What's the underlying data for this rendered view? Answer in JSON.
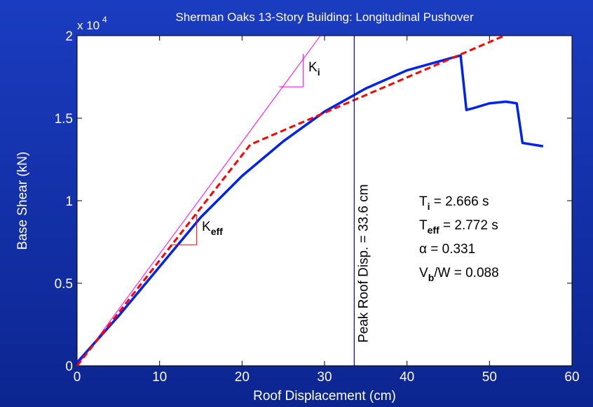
{
  "chart_data": {
    "type": "line",
    "title": "Sherman Oaks 13-Story Building: Longitudinal Pushover",
    "xlabel": "Roof Displacement (cm)",
    "ylabel": "Base Shear (kN)",
    "y_multiplier": {
      "base": "x 10",
      "exponent": "4"
    },
    "xlim": [
      0,
      60
    ],
    "ylim": [
      0,
      2
    ],
    "xticks": [
      0,
      10,
      20,
      30,
      40,
      50,
      60
    ],
    "yticks": [
      0,
      0.5,
      1,
      1.5,
      2
    ],
    "series": [
      {
        "color": "#ff00ff",
        "style": "solid",
        "width": 1,
        "x": [
          0,
          29.5
        ],
        "values": [
          0,
          2
        ]
      },
      {
        "color": "#0022ee",
        "style": "solid",
        "width": 3.5,
        "x": [
          0,
          5,
          10,
          15,
          20,
          25,
          30,
          35,
          40,
          45,
          46.5,
          47.2,
          48,
          50,
          52,
          53.3,
          54,
          56.5
        ],
        "values": [
          0.02,
          0.3,
          0.6,
          0.9,
          1.15,
          1.36,
          1.54,
          1.68,
          1.79,
          1.86,
          1.88,
          1.55,
          1.56,
          1.59,
          1.6,
          1.59,
          1.35,
          1.33
        ]
      },
      {
        "color": "#ff0000",
        "style": "dashed",
        "width": 3,
        "x": [
          0,
          21,
          51.8
        ],
        "values": [
          0,
          1.34,
          2
        ]
      },
      {
        "color": "#ff00ff",
        "style": "solid",
        "width": 1,
        "x": [
          24.5,
          27.4,
          27.4
        ],
        "values": [
          1.69,
          1.69,
          1.89
        ]
      },
      {
        "color": "#ff0000",
        "style": "solid",
        "width": 1,
        "x": [
          11.3,
          14.5,
          14.5
        ],
        "values": [
          0.733,
          0.733,
          0.915
        ]
      }
    ],
    "vline": {
      "x": 33.6,
      "color": "#0000cc",
      "label": "Peak Roof Disp. = 33.6 cm"
    },
    "stiffness_labels": [
      {
        "text": "K",
        "sub": "i"
      },
      {
        "text": "K",
        "sub": "eff"
      }
    ],
    "annotations": [
      {
        "text": "T",
        "sub": "i",
        "after": " = 2.666 s"
      },
      {
        "text": "T",
        "sub": "eff",
        "after": " = 2.772 s"
      },
      {
        "text": "α = 0.331"
      },
      {
        "text": "V",
        "sub": "b",
        "after": "/W = 0.088"
      }
    ]
  }
}
